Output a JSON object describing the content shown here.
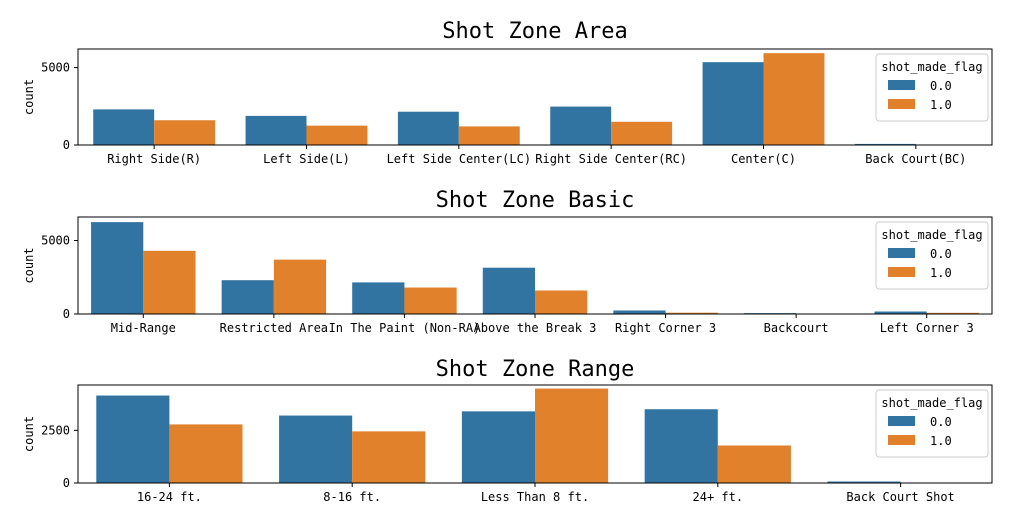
{
  "chart_data": [
    {
      "type": "bar",
      "title": "Shot Zone Area",
      "ylabel": "count",
      "xlabel": "",
      "ylim": [
        0,
        6200
      ],
      "yticks": [
        0,
        5000
      ],
      "categories": [
        "Right Side(R)",
        "Left Side(L)",
        "Left Side Center(LC)",
        "Right Side Center(RC)",
        "Center(C)",
        "Back Court(BC)"
      ],
      "series": [
        {
          "name": "0.0",
          "values": [
            2300,
            1880,
            2150,
            2480,
            5350,
            70
          ]
        },
        {
          "name": "1.0",
          "values": [
            1600,
            1250,
            1200,
            1500,
            5930,
            10
          ]
        }
      ],
      "legend": {
        "title": "shot_made_flag",
        "position": "upper right"
      }
    },
    {
      "type": "bar",
      "title": "Shot Zone Basic",
      "ylabel": "count",
      "xlabel": "",
      "ylim": [
        0,
        6600
      ],
      "yticks": [
        0,
        5000
      ],
      "categories": [
        "Mid-Range",
        "Restricted Area",
        "In The Paint (Non-RA)",
        "Above the Break 3",
        "Right Corner 3",
        "Backcourt",
        "Left Corner 3"
      ],
      "series": [
        {
          "name": "0.0",
          "values": [
            6250,
            2300,
            2150,
            3150,
            240,
            60,
            170
          ]
        },
        {
          "name": "1.0",
          "values": [
            4300,
            3700,
            1800,
            1600,
            90,
            10,
            80
          ]
        }
      ],
      "legend": {
        "title": "shot_made_flag",
        "position": "upper right"
      }
    },
    {
      "type": "bar",
      "title": "Shot Zone Range",
      "ylabel": "count",
      "xlabel": "",
      "ylim": [
        0,
        4650
      ],
      "yticks": [
        0,
        2500
      ],
      "categories": [
        "16-24 ft.",
        "8-16 ft.",
        "Less Than 8 ft.",
        "24+ ft.",
        "Back Court Shot"
      ],
      "series": [
        {
          "name": "0.0",
          "values": [
            4150,
            3200,
            3400,
            3500,
            70
          ]
        },
        {
          "name": "1.0",
          "values": [
            2780,
            2450,
            4480,
            1780,
            10
          ]
        }
      ],
      "legend": {
        "title": "shot_made_flag",
        "position": "upper right"
      }
    }
  ],
  "colors": {
    "series0": "#3274a1",
    "series1": "#e1812c",
    "axis": "#000000",
    "legend_border": "#cccccc"
  }
}
